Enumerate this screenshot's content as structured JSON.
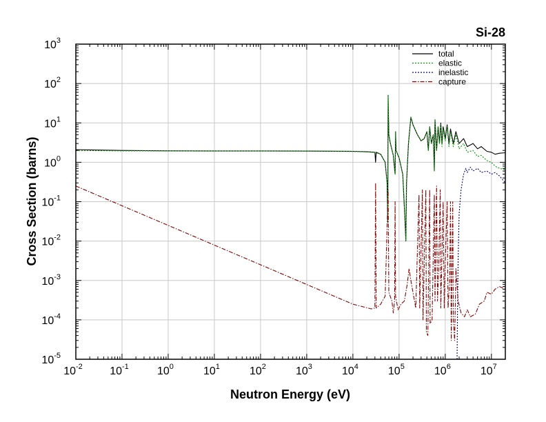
{
  "chart_data": {
    "type": "line",
    "title": "Si-28",
    "xlabel": "Neutron Energy (eV)",
    "ylabel": "Cross Section (barns)",
    "x_scale": "log",
    "y_scale": "log",
    "xlim": [
      0.01,
      20000000
    ],
    "ylim": [
      1e-05,
      1000
    ],
    "x_ticks": [
      {
        "base": "10",
        "exp": "-2",
        "value": 0.01
      },
      {
        "base": "10",
        "exp": "-1",
        "value": 0.1
      },
      {
        "base": "10",
        "exp": "0",
        "value": 1
      },
      {
        "base": "10",
        "exp": "1",
        "value": 10
      },
      {
        "base": "10",
        "exp": "2",
        "value": 100
      },
      {
        "base": "10",
        "exp": "3",
        "value": 1000
      },
      {
        "base": "10",
        "exp": "4",
        "value": 10000
      },
      {
        "base": "10",
        "exp": "5",
        "value": 100000
      },
      {
        "base": "10",
        "exp": "6",
        "value": 1000000
      },
      {
        "base": "10",
        "exp": "7",
        "value": 10000000
      }
    ],
    "y_ticks": [
      {
        "base": "10",
        "exp": "3",
        "value": 1000
      },
      {
        "base": "10",
        "exp": "2",
        "value": 100
      },
      {
        "base": "10",
        "exp": "1",
        "value": 10
      },
      {
        "base": "10",
        "exp": "0",
        "value": 1
      },
      {
        "base": "10",
        "exp": "-1",
        "value": 0.1
      },
      {
        "base": "10",
        "exp": "-2",
        "value": 0.01
      },
      {
        "base": "10",
        "exp": "-3",
        "value": 0.001
      },
      {
        "base": "10",
        "exp": "-4",
        "value": 0.0001
      },
      {
        "base": "10",
        "exp": "-5",
        "value": 1e-05
      }
    ],
    "grid": true,
    "legend_position": "top-right",
    "series": [
      {
        "name": "total",
        "color": "#000000",
        "dash": "solid",
        "points": [
          [
            0.01,
            2.1
          ],
          [
            0.1,
            2.0
          ],
          [
            1,
            1.95
          ],
          [
            10,
            1.94
          ],
          [
            100,
            1.94
          ],
          [
            1000,
            1.93
          ],
          [
            10000,
            1.9
          ],
          [
            20000,
            1.85
          ],
          [
            30000,
            1.8
          ],
          [
            31000,
            1.0
          ],
          [
            32000,
            1.8
          ],
          [
            40000,
            1.6
          ],
          [
            50000,
            1.0
          ],
          [
            55000,
            0.3
          ],
          [
            57000,
            0.03
          ],
          [
            58000,
            50
          ],
          [
            60000,
            5
          ],
          [
            65000,
            3
          ],
          [
            75000,
            1.5
          ],
          [
            82000,
            0.5
          ],
          [
            84000,
            6
          ],
          [
            86000,
            2
          ],
          [
            100000,
            1.3
          ],
          [
            120000,
            0.5
          ],
          [
            135000,
            0.03
          ],
          [
            140000,
            0.01
          ],
          [
            145000,
            0.3
          ],
          [
            160000,
            3
          ],
          [
            180000,
            14
          ],
          [
            200000,
            9
          ],
          [
            250000,
            5
          ],
          [
            300000,
            3.5
          ],
          [
            350000,
            4
          ],
          [
            400000,
            6
          ],
          [
            430000,
            2
          ],
          [
            460000,
            8
          ],
          [
            500000,
            3
          ],
          [
            550000,
            5
          ],
          [
            580000,
            0.6
          ],
          [
            600000,
            12
          ],
          [
            650000,
            2
          ],
          [
            700000,
            8
          ],
          [
            750000,
            3
          ],
          [
            800000,
            10
          ],
          [
            850000,
            3
          ],
          [
            900000,
            8
          ],
          [
            1000000,
            4
          ],
          [
            1100000,
            9
          ],
          [
            1200000,
            3
          ],
          [
            1300000,
            7
          ],
          [
            1500000,
            3
          ],
          [
            1700000,
            6
          ],
          [
            2000000,
            3
          ],
          [
            2500000,
            4
          ],
          [
            3000000,
            2.5
          ],
          [
            4000000,
            3
          ],
          [
            5000000,
            2.2
          ],
          [
            6000000,
            2.5
          ],
          [
            8000000,
            1.9
          ],
          [
            10000000,
            1.8
          ],
          [
            12000000,
            1.6
          ],
          [
            15000000,
            1.7
          ],
          [
            20000000,
            1.75
          ]
        ]
      },
      {
        "name": "elastic",
        "color": "#009900",
        "dash": "dotted",
        "points": [
          [
            0.01,
            2.0
          ],
          [
            0.1,
            1.95
          ],
          [
            1,
            1.94
          ],
          [
            10,
            1.93
          ],
          [
            100,
            1.93
          ],
          [
            1000,
            1.92
          ],
          [
            10000,
            1.88
          ],
          [
            20000,
            1.83
          ],
          [
            30000,
            1.78
          ],
          [
            40000,
            1.6
          ],
          [
            50000,
            1.0
          ],
          [
            55000,
            0.3
          ],
          [
            57000,
            0.03
          ],
          [
            58000,
            48
          ],
          [
            60000,
            5
          ],
          [
            65000,
            3
          ],
          [
            75000,
            1.5
          ],
          [
            82000,
            0.5
          ],
          [
            84000,
            6
          ],
          [
            86000,
            2
          ],
          [
            100000,
            1.3
          ],
          [
            120000,
            0.5
          ],
          [
            135000,
            0.03
          ],
          [
            140000,
            0.01
          ],
          [
            145000,
            0.3
          ],
          [
            160000,
            3
          ],
          [
            180000,
            14
          ],
          [
            200000,
            9
          ],
          [
            250000,
            5
          ],
          [
            300000,
            3.5
          ],
          [
            350000,
            4
          ],
          [
            400000,
            6
          ],
          [
            430000,
            2
          ],
          [
            460000,
            8
          ],
          [
            500000,
            3
          ],
          [
            550000,
            5
          ],
          [
            580000,
            0.6
          ],
          [
            600000,
            12
          ],
          [
            650000,
            2
          ],
          [
            700000,
            8
          ],
          [
            750000,
            3
          ],
          [
            800000,
            9
          ],
          [
            850000,
            2.5
          ],
          [
            900000,
            7
          ],
          [
            1000000,
            3.5
          ],
          [
            1100000,
            8
          ],
          [
            1200000,
            2.5
          ],
          [
            1300000,
            6
          ],
          [
            1500000,
            2.5
          ],
          [
            1700000,
            5
          ],
          [
            2000000,
            2.2
          ],
          [
            2500000,
            3
          ],
          [
            3000000,
            1.8
          ],
          [
            4000000,
            2
          ],
          [
            5000000,
            1.4
          ],
          [
            6000000,
            1.5
          ],
          [
            8000000,
            1.1
          ],
          [
            10000000,
            1.0
          ],
          [
            12000000,
            0.8
          ],
          [
            15000000,
            0.7
          ],
          [
            20000000,
            0.65
          ]
        ]
      },
      {
        "name": "inelastic",
        "color": "#000080",
        "dash": "dotted",
        "points": [
          [
            1800000,
            1e-05
          ],
          [
            1850000,
            0.0003
          ],
          [
            1900000,
            0.003
          ],
          [
            2000000,
            0.05
          ],
          [
            2200000,
            0.2
          ],
          [
            2500000,
            0.5
          ],
          [
            2800000,
            0.7
          ],
          [
            3000000,
            0.55
          ],
          [
            3500000,
            0.75
          ],
          [
            4000000,
            0.6
          ],
          [
            5000000,
            0.7
          ],
          [
            6000000,
            0.55
          ],
          [
            8000000,
            0.6
          ],
          [
            10000000,
            0.5
          ],
          [
            12000000,
            0.55
          ],
          [
            15000000,
            0.45
          ],
          [
            20000000,
            0.3
          ]
        ]
      },
      {
        "name": "capture",
        "color": "#800000",
        "dash": "dashdot",
        "points": [
          [
            0.01,
            0.25
          ],
          [
            1,
            0.025
          ],
          [
            100,
            0.0025
          ],
          [
            10000,
            0.00025
          ],
          [
            25000,
            0.00019
          ],
          [
            30000,
            0.0002
          ],
          [
            31000,
            0.3
          ],
          [
            32000,
            0.0002
          ],
          [
            40000,
            0.00025
          ],
          [
            50000,
            0.0004
          ],
          [
            58000,
            0.2
          ],
          [
            60000,
            0.0005
          ],
          [
            70000,
            0.0003
          ],
          [
            75000,
            0.00015
          ],
          [
            80000,
            0.0003
          ],
          [
            82000,
            0.1
          ],
          [
            84000,
            0.0004
          ],
          [
            95000,
            0.00018
          ],
          [
            110000,
            0.00025
          ],
          [
            130000,
            0.0003
          ],
          [
            150000,
            0.0008
          ],
          [
            165000,
            0.002
          ],
          [
            180000,
            0.001
          ],
          [
            200000,
            0.0005
          ],
          [
            230000,
            0.0002
          ],
          [
            270000,
            0.15
          ],
          [
            280000,
            0.0002
          ],
          [
            320000,
            0.2
          ],
          [
            330000,
            0.0001
          ],
          [
            380000,
            0.2
          ],
          [
            390000,
            5e-05
          ],
          [
            420000,
            4e-05
          ],
          [
            460000,
            0.2
          ],
          [
            470000,
            8e-05
          ],
          [
            520000,
            0.0001
          ],
          [
            580000,
            0.15
          ],
          [
            600000,
            0.0003
          ],
          [
            650000,
            0.25
          ],
          [
            680000,
            0.0003
          ],
          [
            720000,
            0.002
          ],
          [
            780000,
            0.2
          ],
          [
            800000,
            0.0002
          ],
          [
            900000,
            0.1
          ],
          [
            950000,
            0.0002
          ],
          [
            1000000,
            0.003
          ],
          [
            1100000,
            0.1
          ],
          [
            1150000,
            0.0002
          ],
          [
            1250000,
            0.001
          ],
          [
            1300000,
            0.1
          ],
          [
            1350000,
            3e-05
          ],
          [
            1450000,
            0.1
          ],
          [
            1500000,
            0.0001
          ],
          [
            1600000,
            3e-05
          ],
          [
            1700000,
            0.002
          ],
          [
            1900000,
            0.0003
          ],
          [
            2200000,
            0.00015
          ],
          [
            2600000,
            0.00012
          ],
          [
            3000000,
            0.00018
          ],
          [
            3500000,
            0.00012
          ],
          [
            4500000,
            0.00014
          ],
          [
            5500000,
            0.00025
          ],
          [
            7000000,
            0.0003
          ],
          [
            8000000,
            0.0005
          ],
          [
            10000000,
            0.00045
          ],
          [
            12000000,
            0.0006
          ],
          [
            15000000,
            0.0007
          ],
          [
            20000000,
            0.0006
          ]
        ]
      }
    ]
  }
}
